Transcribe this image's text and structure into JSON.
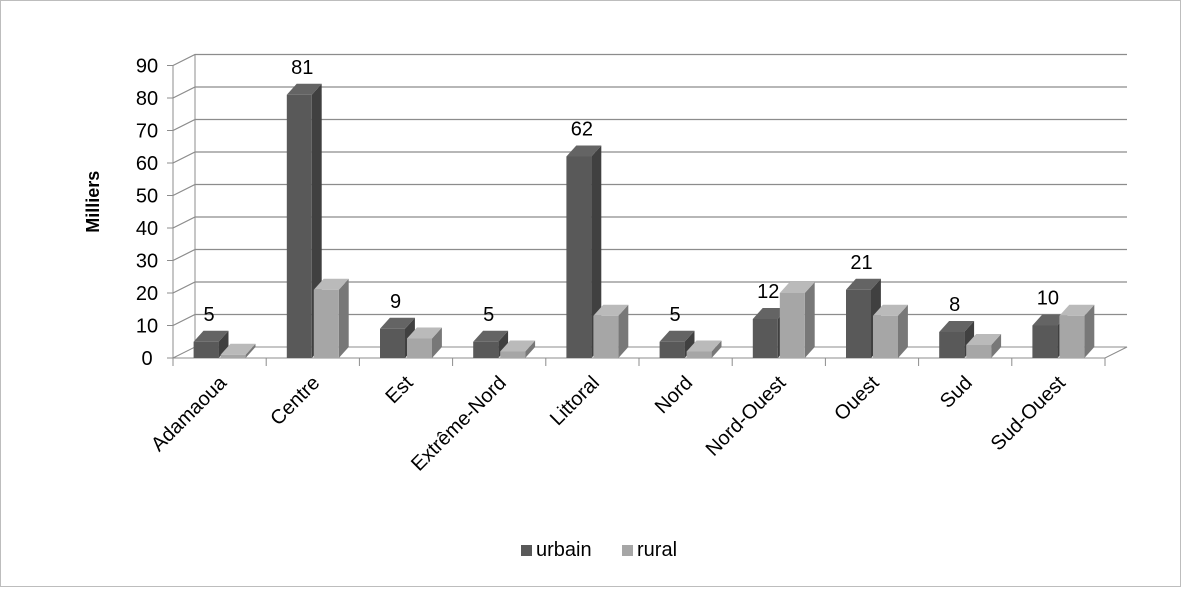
{
  "chart_data": {
    "type": "bar",
    "title": "",
    "xlabel": "",
    "ylabel": "Milliers",
    "ylim": [
      0,
      90
    ],
    "yticks": [
      0,
      10,
      20,
      30,
      40,
      50,
      60,
      70,
      80,
      90
    ],
    "grid": true,
    "legend_position": "bottom",
    "categories": [
      "Adamaoua",
      "Centre",
      "Est",
      "Extrême-Nord",
      "Littoral",
      "Nord",
      "Nord-Ouest",
      "Ouest",
      "Sud",
      "Sud-Ouest"
    ],
    "series": [
      {
        "name": "urbain",
        "color": "#595959",
        "values": [
          5,
          81,
          9,
          5,
          62,
          5,
          12,
          21,
          8,
          10
        ],
        "data_labels": [
          "5",
          "81",
          "9",
          "5",
          "62",
          "5",
          "12",
          "21",
          "8",
          "10"
        ]
      },
      {
        "name": "rural",
        "color": "#a6a6a6",
        "values": [
          1,
          21,
          6,
          2,
          13,
          2,
          20,
          13,
          4,
          13
        ]
      }
    ]
  }
}
